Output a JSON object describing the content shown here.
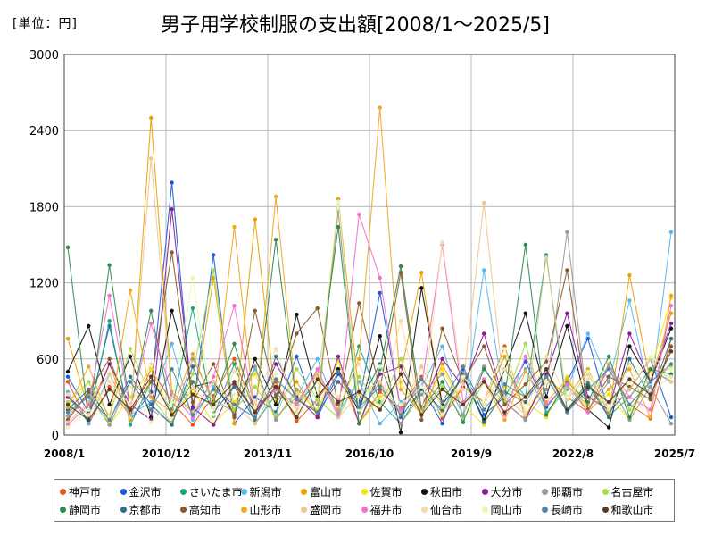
{
  "unit_label": "[単位：円]",
  "chart_data": {
    "type": "line",
    "title": "男子用学校制服の支出額[2008/1～2025/5]",
    "unit": "円",
    "ylim": [
      0,
      3000
    ],
    "yticks": [
      0,
      600,
      1200,
      1800,
      2400,
      3000
    ],
    "x_tick_labels": [
      "2008/1",
      "2010/12",
      "2013/11",
      "2016/10",
      "2019/9",
      "2022/8",
      "2025/7"
    ],
    "grid": true,
    "legend_position": "bottom",
    "series": [
      {
        "name": "神戸市",
        "color": "#e8561a",
        "values": [
          420,
          90,
          380,
          150,
          520,
          260,
          80,
          310,
          600,
          180,
          420,
          110,
          280,
          520,
          90,
          340,
          210,
          460,
          130,
          380,
          260,
          700,
          150,
          420,
          300,
          180,
          560,
          240,
          130,
          760
        ]
      },
      {
        "name": "金沢市",
        "color": "#1e56d6",
        "values": [
          460,
          180,
          860,
          120,
          340,
          1990,
          200,
          1420,
          90,
          300,
          180,
          620,
          140,
          480,
          260,
          1120,
          200,
          380,
          90,
          520,
          160,
          300,
          580,
          220,
          420,
          760,
          180,
          360,
          600,
          140
        ]
      },
      {
        "name": "さいたま市",
        "color": "#1aa878",
        "values": [
          300,
          120,
          900,
          80,
          420,
          200,
          1000,
          150,
          560,
          90,
          320,
          240,
          500,
          140,
          700,
          260,
          90,
          360,
          180,
          480,
          120,
          520,
          300,
          1420,
          200,
          420,
          150,
          300,
          520,
          420
        ]
      },
      {
        "name": "新潟市",
        "color": "#58b8ee",
        "values": [
          340,
          90,
          480,
          160,
          260,
          720,
          120,
          380,
          200,
          520,
          140,
          300,
          600,
          180,
          420,
          90,
          260,
          380,
          700,
          150,
          1300,
          240,
          520,
          180,
          360,
          800,
          420,
          1060,
          300,
          1600
        ]
      },
      {
        "name": "富山市",
        "color": "#e8a300",
        "values": [
          760,
          200,
          560,
          120,
          2500,
          340,
          180,
          1240,
          90,
          1700,
          260,
          420,
          150,
          1860,
          320,
          200,
          480,
          1280,
          180,
          380,
          260,
          620,
          140,
          460,
          300,
          520,
          160,
          1260,
          420,
          960
        ]
      },
      {
        "name": "佐賀市",
        "color": "#f5e50a",
        "values": [
          180,
          420,
          80,
          300,
          520,
          150,
          360,
          90,
          260,
          480,
          120,
          340,
          200,
          580,
          90,
          300,
          420,
          160,
          520,
          240,
          80,
          380,
          260,
          140,
          460,
          200,
          320,
          120,
          500,
          1080
        ]
      },
      {
        "name": "秋田市",
        "color": "#111111",
        "values": [
          500,
          860,
          240,
          620,
          140,
          980,
          380,
          420,
          160,
          600,
          240,
          950,
          300,
          520,
          180,
          780,
          20,
          1160,
          240,
          460,
          120,
          520,
          960,
          300,
          860,
          200,
          60,
          700,
          420,
          840
        ]
      },
      {
        "name": "大分市",
        "color": "#8a1a9a",
        "values": [
          300,
          160,
          560,
          240,
          120,
          1780,
          220,
          80,
          400,
          180,
          560,
          300,
          140,
          620,
          90,
          480,
          540,
          220,
          600,
          380,
          800,
          260,
          120,
          480,
          960,
          300,
          200,
          800,
          420,
          880
        ]
      },
      {
        "name": "那覇市",
        "color": "#999999",
        "values": [
          150,
          320,
          80,
          420,
          200,
          100,
          600,
          280,
          180,
          540,
          120,
          360,
          240,
          1760,
          180,
          420,
          90,
          320,
          480,
          160,
          540,
          260,
          120,
          360,
          1600,
          200,
          420,
          120,
          380,
          90
        ]
      },
      {
        "name": "名古屋市",
        "color": "#a8dc4a",
        "values": [
          260,
          420,
          150,
          680,
          300,
          90,
          480,
          1300,
          200,
          380,
          160,
          520,
          280,
          140,
          460,
          220,
          600,
          180,
          380,
          120,
          420,
          260,
          720,
          160,
          380,
          240,
          560,
          200,
          420,
          540
        ]
      },
      {
        "name": "静岡市",
        "color": "#2f8a50",
        "values": [
          1480,
          120,
          1340,
          200,
          980,
          150,
          420,
          260,
          720,
          180,
          1540,
          240,
          420,
          1640,
          90,
          520,
          1330,
          200,
          420,
          100,
          520,
          300,
          1500,
          160,
          420,
          260,
          620,
          140,
          520,
          480
        ]
      },
      {
        "name": "京都市",
        "color": "#2f7090",
        "values": [
          200,
          360,
          120,
          460,
          240,
          80,
          540,
          180,
          380,
          120,
          620,
          280,
          180,
          420,
          240,
          560,
          140,
          360,
          200,
          480,
          100,
          340,
          260,
          520,
          180,
          400,
          140,
          600,
          300,
          760
        ]
      },
      {
        "name": "高知市",
        "color": "#8a5a2a",
        "values": [
          120,
          340,
          600,
          180,
          420,
          1440,
          260,
          560,
          140,
          980,
          300,
          800,
          1000,
          240,
          1040,
          360,
          1280,
          120,
          840,
          420,
          700,
          240,
          400,
          580,
          1300,
          200,
          460,
          380,
          280,
          700
        ]
      },
      {
        "name": "山形市",
        "color": "#f0a820",
        "values": [
          220,
          540,
          120,
          1140,
          300,
          180,
          640,
          240,
          1640,
          140,
          1880,
          260,
          480,
          200,
          600,
          2580,
          360,
          160,
          560,
          240,
          420,
          120,
          500,
          260,
          440,
          180,
          360,
          520,
          140,
          1100
        ]
      },
      {
        "name": "盛岡市",
        "color": "#ecc890",
        "values": [
          100,
          260,
          480,
          140,
          2180,
          300,
          180,
          420,
          240,
          90,
          380,
          200,
          500,
          140,
          320,
          420,
          180,
          540,
          220,
          400,
          1830,
          300,
          160,
          1400,
          280,
          480,
          200,
          360,
          600,
          420
        ]
      },
      {
        "name": "福井市",
        "color": "#f070d0",
        "values": [
          80,
          240,
          1100,
          200,
          880,
          320,
          140,
          460,
          1020,
          180,
          360,
          240,
          520,
          160,
          1740,
          1240,
          200,
          380,
          1500,
          260,
          440,
          160,
          620,
          240,
          400,
          180,
          540,
          300,
          200,
          1020
        ]
      },
      {
        "name": "仙台市",
        "color": "#f8dca8",
        "values": [
          320,
          160,
          420,
          240,
          560,
          140,
          380,
          200,
          500,
          260,
          680,
          180,
          420,
          300,
          560,
          220,
          900,
          160,
          1520,
          360,
          240,
          520,
          180,
          620,
          300,
          440,
          200,
          560,
          340,
          460
        ]
      },
      {
        "name": "岡山市",
        "color": "#e8f8b0",
        "values": [
          60,
          200,
          140,
          380,
          100,
          260,
          1240,
          160,
          320,
          220,
          480,
          140,
          360,
          1840,
          200,
          540,
          240,
          380,
          160,
          460,
          260,
          680,
          200,
          420,
          300,
          500,
          220,
          420,
          620,
          520
        ]
      },
      {
        "name": "長崎市",
        "color": "#4f86a8",
        "values": [
          180,
          300,
          120,
          420,
          200,
          520,
          160,
          360,
          240,
          140,
          440,
          280,
          180,
          500,
          220,
          380,
          160,
          440,
          260,
          540,
          200,
          400,
          300,
          460,
          180,
          360,
          520,
          240,
          420,
          560
        ]
      },
      {
        "name": "和歌山市",
        "color": "#5a3a1e",
        "values": [
          240,
          120,
          360,
          200,
          460,
          160,
          320,
          240,
          420,
          180,
          380,
          140,
          440,
          260,
          340,
          200,
          480,
          160,
          360,
          240,
          420,
          180,
          300,
          520,
          200,
          380,
          260,
          440,
          320,
          660
        ]
      }
    ]
  }
}
